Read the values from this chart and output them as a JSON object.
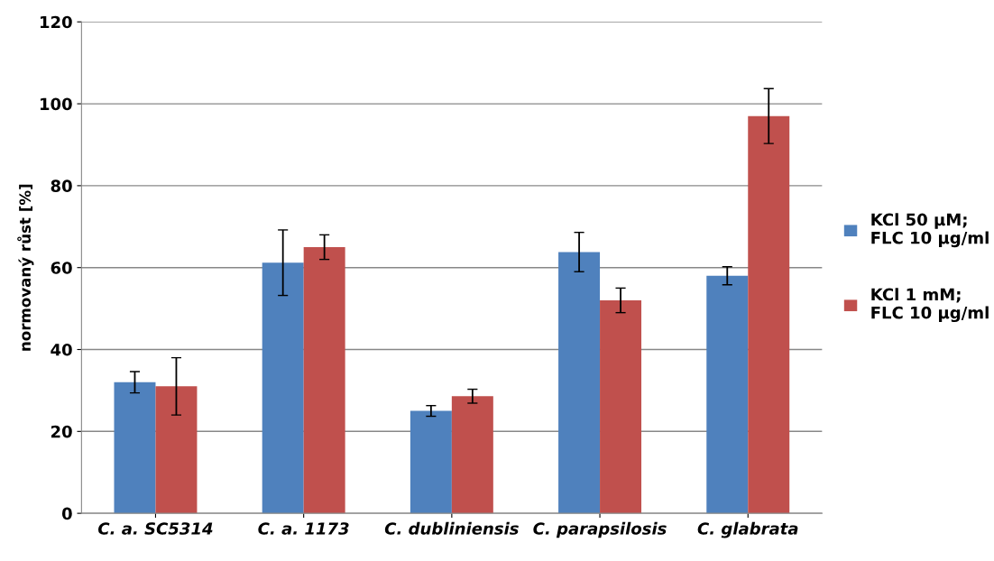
{
  "chart_data": {
    "type": "bar",
    "ylabel": "normovaný růst [%]",
    "categories": [
      "C. a. SC5314",
      "C. a. 1173",
      "C. dubliniensis",
      "C. parapsilosis",
      "C. glabrata"
    ],
    "series": [
      {
        "name": "KCl 50 µM;\nFLC 10 µg/ml",
        "color": "#4f81bd",
        "values": [
          32,
          61.2,
          25,
          63.8,
          58
        ],
        "errors": [
          2.6,
          8,
          1.3,
          4.8,
          2.2
        ]
      },
      {
        "name": "KCl 1 mM;\nFLC 10 µg/ml",
        "color": "#c0504d",
        "values": [
          31,
          65,
          28.6,
          52,
          97
        ],
        "errors": [
          7,
          3,
          1.7,
          3,
          6.7
        ]
      }
    ],
    "ylim": [
      0,
      120
    ],
    "yticks": [
      0,
      20,
      40,
      60,
      80,
      100,
      120
    ],
    "grid": "y",
    "legend": "right"
  }
}
